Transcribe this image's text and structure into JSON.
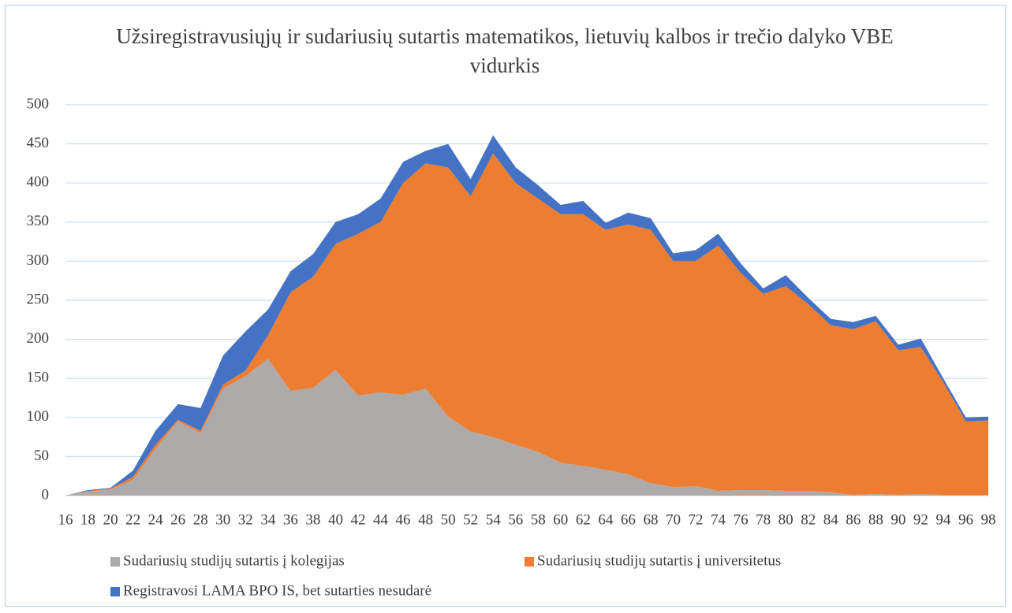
{
  "chart_data": {
    "type": "area",
    "title": "Užsiregistravusiųjų ir sudariusių sutartis matematikos, lietuvių kalbos ir trečio dalyko VBE vidurkis",
    "x": [
      16,
      18,
      20,
      22,
      24,
      26,
      28,
      30,
      32,
      34,
      36,
      38,
      40,
      42,
      44,
      46,
      48,
      50,
      52,
      54,
      56,
      58,
      60,
      62,
      64,
      66,
      68,
      70,
      72,
      74,
      76,
      78,
      80,
      82,
      84,
      86,
      88,
      90,
      92,
      94,
      96,
      98
    ],
    "xlim": [
      16,
      98
    ],
    "xticks": [
      16,
      18,
      20,
      22,
      24,
      26,
      28,
      30,
      32,
      34,
      36,
      38,
      40,
      42,
      44,
      46,
      48,
      50,
      52,
      54,
      56,
      58,
      60,
      62,
      64,
      66,
      68,
      70,
      72,
      74,
      76,
      78,
      80,
      82,
      84,
      86,
      88,
      90,
      92,
      94,
      96,
      98
    ],
    "stacked": true,
    "series": [
      {
        "name": "Sudariusių studijų sutartis į kolegijas",
        "color": "#aeaaaa",
        "values": [
          0,
          5,
          8,
          20,
          60,
          95,
          80,
          137,
          153,
          175,
          134,
          138,
          161,
          128,
          132,
          129,
          137,
          101,
          82,
          75,
          65,
          56,
          42,
          38,
          33,
          27,
          16,
          11,
          12,
          6,
          7,
          7,
          6,
          6,
          4,
          1,
          2,
          1,
          2,
          1,
          1,
          1
        ]
      },
      {
        "name": "Sudariusių studijų sutartis į universitetus",
        "color": "#ed7d31",
        "values": [
          0,
          1,
          1,
          4,
          5,
          2,
          3,
          5,
          7,
          30,
          126,
          142,
          161,
          207,
          218,
          271,
          288,
          319,
          301,
          363,
          335,
          324,
          318,
          322,
          307,
          320,
          324,
          289,
          288,
          314,
          278,
          251,
          262,
          239,
          214,
          212,
          221,
          185,
          188,
          144,
          94,
          95
        ]
      },
      {
        "name": "Registravosi LAMA BPO IS, bet sutarties nesudarė",
        "color": "#4472c4",
        "values": [
          0,
          1,
          1,
          8,
          18,
          20,
          29,
          37,
          50,
          33,
          27,
          29,
          28,
          25,
          30,
          27,
          16,
          30,
          22,
          23,
          20,
          17,
          12,
          17,
          9,
          15,
          15,
          10,
          14,
          15,
          12,
          7,
          14,
          8,
          8,
          9,
          7,
          7,
          11,
          5,
          5,
          5
        ]
      }
    ],
    "ylim": [
      0,
      500
    ],
    "yticks": [
      0,
      50,
      100,
      150,
      200,
      250,
      300,
      350,
      400,
      450,
      500
    ],
    "grid": true,
    "legend": "bottom"
  }
}
